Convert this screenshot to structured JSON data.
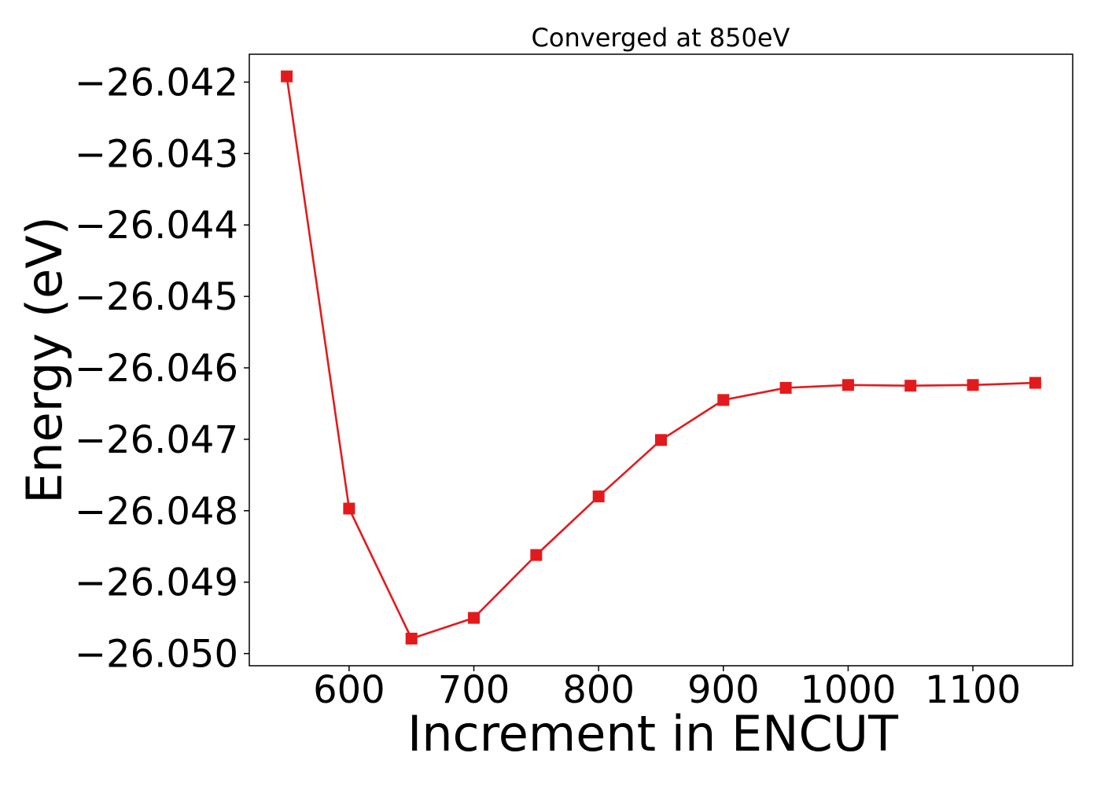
{
  "chart_data": {
    "type": "line",
    "title": "Converged at 850eV",
    "xlabel": "Increment in ENCUT",
    "ylabel": "Energy (eV)",
    "xlim": [
      520,
      1180
    ],
    "ylim": [
      -26.05017,
      -26.04161
    ],
    "xticks": [
      600,
      700,
      800,
      900,
      1000,
      1100
    ],
    "xtick_labels": [
      "600",
      "700",
      "800",
      "900",
      "1000",
      "1100"
    ],
    "yticks": [
      -26.042,
      -26.043,
      -26.044,
      -26.045,
      -26.046,
      -26.047,
      -26.048,
      -26.049,
      -26.05
    ],
    "ytick_labels": [
      "−26.042",
      "−26.043",
      "−26.044",
      "−26.045",
      "−26.046",
      "−26.047",
      "−26.048",
      "−26.049",
      "−26.050"
    ],
    "grid": false,
    "series": [
      {
        "color": "#e31a1c",
        "marker": "square",
        "x": [
          550,
          600,
          650,
          700,
          750,
          800,
          850,
          900,
          950,
          1000,
          1050,
          1100,
          1150
        ],
        "y": [
          -26.04192,
          -26.04797,
          -26.04979,
          -26.0495,
          -26.04862,
          -26.0478,
          -26.04701,
          -26.04645,
          -26.04628,
          -26.04624,
          -26.04625,
          -26.04624,
          -26.04621
        ]
      }
    ]
  }
}
